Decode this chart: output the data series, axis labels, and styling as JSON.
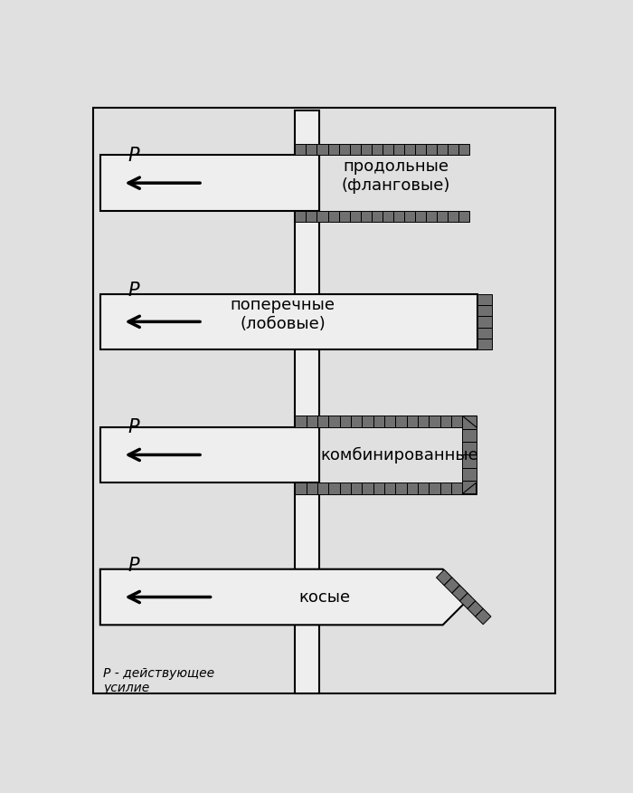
{
  "bg_color": "#e0e0e0",
  "plate_color": "#eeeeee",
  "weld_color": "#707070",
  "outline_color": "#000000",
  "fig_width": 7.0,
  "fig_height": 8.76,
  "footer_text": "P - действующее\nусилие",
  "labels": [
    "продольные\n(фланговые)",
    "поперечные\n(лобовые)",
    "комбинированные",
    "косые"
  ]
}
